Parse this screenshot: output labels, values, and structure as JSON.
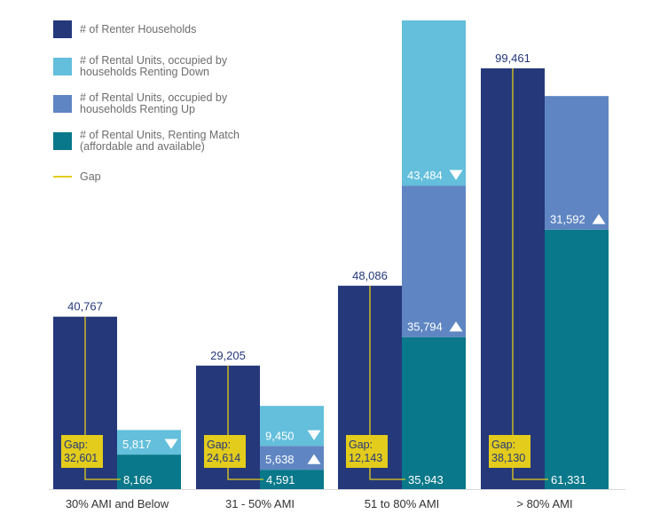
{
  "colors": {
    "renter_households": "#25387a",
    "renting_down": "#63bfdb",
    "renting_up": "#5f86c2",
    "renting_match": "#08788a",
    "gap": "#e3cc1c",
    "axis": "#d9d9d9",
    "value_label_dark": "#25387a",
    "value_label_light": "#ffffff",
    "legend_text": "#6d6d6d",
    "tick_text": "#333333"
  },
  "legend": [
    {
      "key": "renter_households",
      "label": "# of Renter Households",
      "kind": "swatch"
    },
    {
      "key": "renting_down",
      "label": "# of Rental Units, occupied by\nhouseholds Renting Down",
      "kind": "swatch"
    },
    {
      "key": "renting_up",
      "label": "# of Rental Units, occupied by\nhouseholds Renting Up",
      "kind": "swatch"
    },
    {
      "key": "renting_match",
      "label": "# of Rental Units, Renting Match\n(affordable and available)",
      "kind": "swatch"
    },
    {
      "key": "gap",
      "label": "Gap",
      "kind": "line"
    }
  ],
  "chart_data": {
    "type": "bar",
    "title": "",
    "xlabel": "",
    "ylabel": "",
    "grid": false,
    "legend_position": "top-left",
    "categories": [
      "30% AMI and Below",
      "31 - 50% AMI",
      "51 to 80% AMI",
      "> 80% AMI"
    ],
    "series": [
      {
        "name": "# of Renter Households",
        "key": "renter_households",
        "values": [
          40767,
          29205,
          48086,
          99461
        ]
      },
      {
        "name": "# of Rental Units, Renting Match (affordable and available)",
        "key": "renting_match",
        "stack": "units",
        "values": [
          8166,
          4591,
          35943,
          61331
        ]
      },
      {
        "name": "# of Rental Units, occupied by households Renting Up",
        "key": "renting_up",
        "stack": "units",
        "values": [
          null,
          5638,
          35794,
          31592
        ]
      },
      {
        "name": "# of Rental Units, occupied by households Renting Down",
        "key": "renting_down",
        "stack": "units",
        "values": [
          5817,
          9450,
          43484,
          null
        ]
      }
    ],
    "gap": {
      "label_prefix": "Gap:",
      "values": [
        32601,
        24614,
        12143,
        38130
      ]
    },
    "value_labels": {
      "renter_households": [
        "40,767",
        "29,205",
        "48,086",
        "99,461"
      ],
      "renting_match": [
        "8,166",
        "4,591",
        "35,943",
        "61,331"
      ],
      "renting_up": [
        null,
        "5,638",
        "35,794",
        "31,592"
      ],
      "renting_down": [
        "5,817",
        "9,450",
        "43,484",
        null
      ],
      "gap": [
        "32,601",
        "24,614",
        "12,143",
        "38,130"
      ]
    },
    "arrows": {
      "renting_up": "up",
      "renting_down": "down"
    },
    "tick_labels": [
      "30% AMI and Below",
      "31 - 50% AMI",
      "51 to 80% AMI",
      "> 80% AMI"
    ],
    "ylim": [
      0,
      99461
    ],
    "truncated_series_note": "51 to 80% AMI Renting Down bar extends beyond top of plot"
  }
}
